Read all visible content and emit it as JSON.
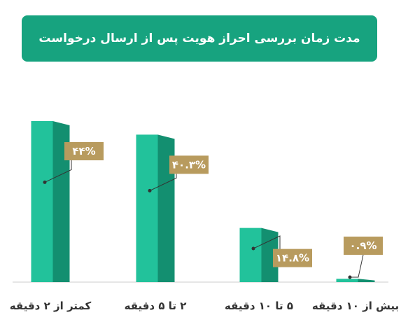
{
  "chart_data": {
    "type": "bar",
    "title": "مدت زمان بررسی احراز هویت پس از ارسال درخواست",
    "categories": [
      "کمتر از ۲ دقیقه",
      "۲ تا ۵ دقیقه",
      "۵ تا ۱۰ دقیقه",
      "بیش از ۱۰ دقیقه"
    ],
    "values": [
      44,
      40.3,
      14.8,
      0.9
    ],
    "value_labels": [
      "۴۴%",
      "۴۰.۳%",
      "۱۴.۸%",
      "۰.۹%"
    ],
    "ylim": [
      0,
      44
    ],
    "xlabel": "",
    "ylabel": "",
    "grid": false,
    "legend": "none"
  },
  "colors": {
    "header": "#17a37f",
    "bar_front": "#22c29b",
    "bar_side": "#138f70",
    "label_box": "#b89b5e",
    "baseline": "#cccccc",
    "leader": "#333333"
  }
}
